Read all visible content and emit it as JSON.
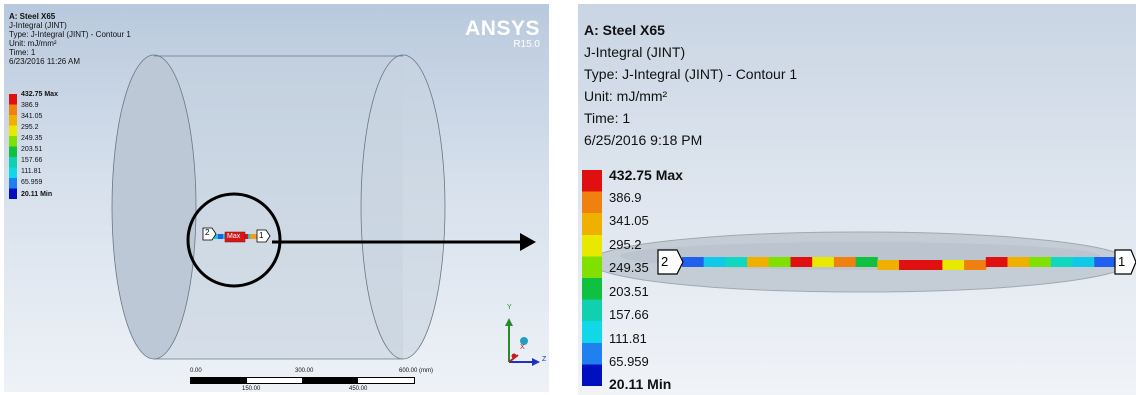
{
  "left": {
    "info": {
      "title": "A: Steel X65",
      "line1": "J-Integral (JINT)",
      "line2": "Type: J-Integral (JINT) - Contour 1",
      "line3": "Unit: mJ/mm²",
      "line4": "Time: 1",
      "line5": "6/23/2016 11:26 AM"
    },
    "brand": {
      "name": "ANSYS",
      "version": "R15.0"
    },
    "legend": [
      "432.75 Max",
      "386.9",
      "341.05",
      "295.2",
      "249.35",
      "203.51",
      "157.66",
      "111.81",
      "65.959",
      "20.11 Min"
    ],
    "crack": {
      "label_start": "2",
      "label_end": "1",
      "max_label": "Max"
    },
    "triad": {
      "y": "Y",
      "x": "X",
      "z": "Z"
    },
    "scale": {
      "top_labels": [
        "0.00",
        "300.00",
        "600.00 (mm)"
      ],
      "bottom_labels": [
        "150.00",
        "450.00"
      ]
    }
  },
  "right": {
    "info": {
      "title": "A: Steel X65",
      "line1": "J-Integral (JINT)",
      "line2": "Type: J-Integral (JINT) - Contour 1",
      "line3": "Unit: mJ/mm²",
      "line4": "Time: 1",
      "line5": "6/25/2016 9:18 PM"
    },
    "legend": [
      "432.75 Max",
      "386.9",
      "341.05",
      "295.2",
      "249.35",
      "203.51",
      "157.66",
      "111.81",
      "65.959",
      "20.11 Min"
    ],
    "crack": {
      "label_start": "2",
      "label_end": "1"
    }
  },
  "colors": {
    "legend": [
      "#e01010",
      "#f08010",
      "#f0b000",
      "#e8e800",
      "#80e000",
      "#10c040",
      "#10d0b0",
      "#10d8e8",
      "#2080f0",
      "#0010c0"
    ],
    "crack_segments": [
      "#2060f0",
      "#10c8e8",
      "#10d8c0",
      "#f0b000",
      "#80e000",
      "#e01010",
      "#e8e800",
      "#f08010",
      "#10c040",
      "#f0b000",
      "#e01010",
      "#e01010",
      "#e8e800",
      "#f08010",
      "#e01010",
      "#f0b000",
      "#80e000",
      "#10d8c0",
      "#10c8e8",
      "#2060f0"
    ]
  }
}
